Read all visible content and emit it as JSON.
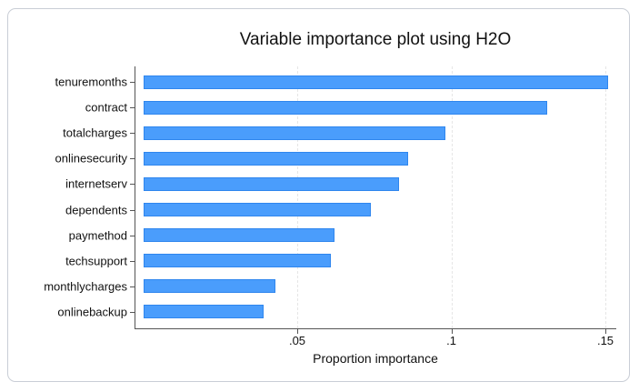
{
  "chart_data": {
    "type": "bar",
    "orientation": "horizontal",
    "title": "Variable importance plot using H2O",
    "xlabel": "Proportion importance",
    "ylabel": "",
    "categories": [
      "tenuremonths",
      "contract",
      "totalcharges",
      "onlinesecurity",
      "internetserv",
      "dependents",
      "paymethod",
      "techsupport",
      "monthlycharges",
      "onlinebackup"
    ],
    "values": [
      0.151,
      0.131,
      0.098,
      0.086,
      0.083,
      0.074,
      0.062,
      0.061,
      0.043,
      0.039
    ],
    "xlim": [
      0,
      0.155
    ],
    "xticks": [
      0.05,
      0.1,
      0.15
    ],
    "xtick_labels": [
      ".05",
      ".1",
      ".15"
    ],
    "grid": "vertical dashed at x ticks",
    "legend": "none",
    "bar_color": "#4a9dfc"
  },
  "labels": {
    "title": "Variable importance plot using H2O",
    "xaxis_title": "Proportion importance",
    "xticks": [
      ".05",
      ".1",
      ".15"
    ],
    "bars": [
      "tenuremonths",
      "contract",
      "totalcharges",
      "onlinesecurity",
      "internetserv",
      "dependents",
      "paymethod",
      "techsupport",
      "monthlycharges",
      "onlinebackup"
    ]
  }
}
